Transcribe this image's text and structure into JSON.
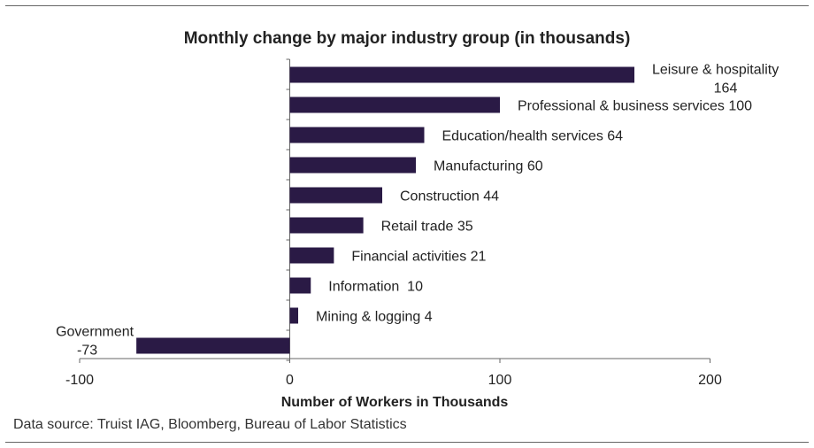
{
  "chart_data": {
    "type": "bar",
    "orientation": "horizontal",
    "title": "Monthly change by major industry group (in thousands)",
    "xlabel": "Number of Workers in Thousands",
    "ylabel": "",
    "xlim": [
      -100,
      200
    ],
    "xticks": [
      -100,
      0,
      100,
      200
    ],
    "xtick_labels": [
      "-100",
      "0",
      "100",
      "200"
    ],
    "grid": false,
    "bar_color": "#2a1a45",
    "categories": [
      "Leisure & hospitality",
      "Professional & business services",
      "Education/health services",
      "Manufacturing",
      "Construction",
      "Retail trade",
      "Financial activities",
      "Information",
      "Mining & logging",
      "Government"
    ],
    "values": [
      164,
      100,
      64,
      60,
      44,
      35,
      21,
      10,
      4,
      -73
    ],
    "data_labels": [
      [
        "Leisure & hospitality",
        "164"
      ],
      [
        "Professional & business services 100"
      ],
      [
        "Education/health services 64"
      ],
      [
        "Manufacturing 60"
      ],
      [
        "Construction 44"
      ],
      [
        "Retail trade 35"
      ],
      [
        "Financial activities 21"
      ],
      [
        "Information  10"
      ],
      [
        "Mining & logging 4"
      ],
      [
        "Government",
        "-73"
      ]
    ]
  },
  "footer": {
    "source": "Data source: Truist IAG, Bloomberg, Bureau of Labor Statistics"
  }
}
